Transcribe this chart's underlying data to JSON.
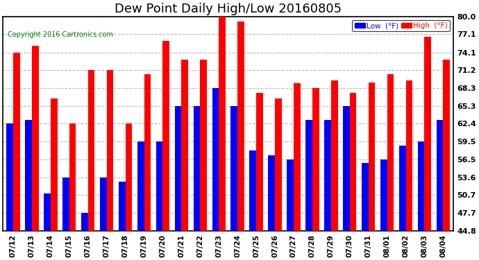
{
  "title": "Dew Point Daily High/Low 20160805",
  "copyright": "Copyright 2016 Cartronics.com",
  "categories": [
    "07/12",
    "07/13",
    "07/14",
    "07/15",
    "07/16",
    "07/17",
    "07/18",
    "07/19",
    "07/20",
    "07/21",
    "07/22",
    "07/23",
    "07/24",
    "07/25",
    "07/26",
    "07/27",
    "07/28",
    "07/29",
    "07/30",
    "07/31",
    "08/01",
    "08/02",
    "08/03",
    "08/04"
  ],
  "low_values": [
    62.4,
    63.0,
    51.0,
    53.6,
    47.7,
    53.6,
    52.9,
    59.5,
    59.5,
    65.3,
    65.3,
    68.3,
    65.3,
    58.0,
    57.2,
    56.5,
    63.0,
    63.0,
    65.3,
    55.9,
    56.5,
    58.8,
    59.5,
    63.0
  ],
  "high_values": [
    74.1,
    75.2,
    66.5,
    62.4,
    71.2,
    71.2,
    62.4,
    70.5,
    76.0,
    72.9,
    72.9,
    80.0,
    79.2,
    67.5,
    66.5,
    69.0,
    68.3,
    69.5,
    67.5,
    69.2,
    70.5,
    69.5,
    76.7,
    72.9
  ],
  "low_color": "#0000FF",
  "high_color": "#FF0000",
  "ymin": 44.8,
  "ymax": 80.0,
  "yticks": [
    44.8,
    47.7,
    50.7,
    53.6,
    56.5,
    59.5,
    62.4,
    65.3,
    68.3,
    71.2,
    74.1,
    77.1,
    80.0
  ],
  "background_color": "#FFFFFF",
  "plot_bg_color": "#FFFFFF",
  "grid_color": "#BBBBBB",
  "title_fontsize": 13,
  "copyright_fontsize": 7,
  "tick_fontsize": 8,
  "legend_low_label": "Low  (°F)",
  "legend_high_label": "High  (°F)",
  "bar_width": 0.36,
  "figsize": [
    6.9,
    3.75
  ],
  "dpi": 100
}
